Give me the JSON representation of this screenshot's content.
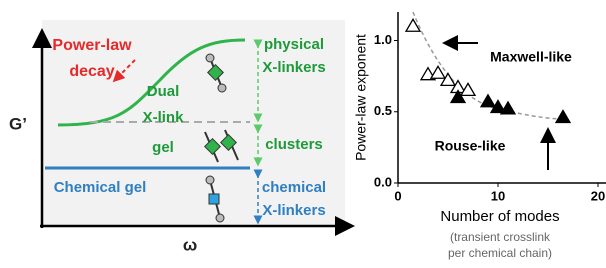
{
  "diagram": {
    "y_axis_label": "G’",
    "x_axis_label": "ω",
    "power_law": [
      "Power-law",
      "decay"
    ],
    "dual": [
      "Dual",
      "X-link",
      "gel"
    ],
    "chemical_gel": "Chemical gel",
    "physical": [
      "physical",
      "X-linkers"
    ],
    "clusters": "clusters",
    "chemical": [
      "chemical",
      "X-linkers"
    ]
  },
  "chart_data": {
    "type": "scatter",
    "ylabel": "Power-law exponent",
    "xlabel": "Number of modes",
    "xlabel_note": [
      "(transient crosslink",
      "per chemical chain)"
    ],
    "xlim": [
      0,
      20
    ],
    "xticks": [
      0,
      10,
      20
    ],
    "ylim": [
      0,
      1.2
    ],
    "yticks": [
      {
        "value": 0,
        "label": "0.0"
      },
      {
        "value": 0.5,
        "label": "0.5"
      },
      {
        "value": 1,
        "label": "1.0"
      }
    ],
    "grid": false,
    "series": [
      {
        "color": "#000000",
        "fill": "none",
        "x": [
          1.5,
          3,
          4,
          5,
          6,
          7
        ],
        "values": [
          1.1,
          0.76,
          0.77,
          0.72,
          0.67,
          0.65
        ]
      },
      {
        "color": "#000000",
        "fill": "#000000",
        "x": [
          6,
          9,
          10,
          11,
          16.5
        ],
        "values": [
          0.6,
          0.57,
          0.53,
          0.52,
          0.46
        ]
      }
    ],
    "annotations": [
      "Maxwell-like",
      "Rouse-like"
    ]
  }
}
